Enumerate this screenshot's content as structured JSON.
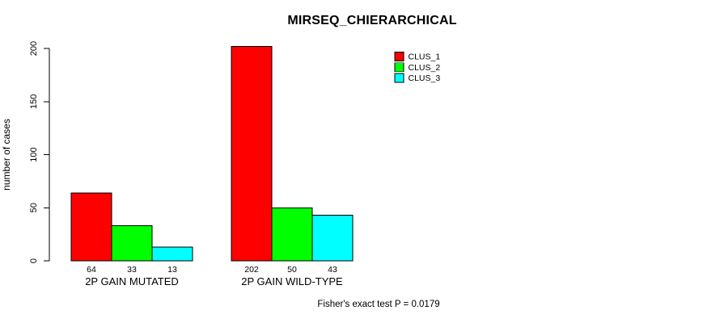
{
  "title": "MIRSEQ_CHIERARCHICAL",
  "footer": "Fisher's exact test P = 0.0179",
  "chart_data": {
    "type": "bar",
    "title": "MIRSEQ_CHIERARCHICAL",
    "xlabel": "",
    "ylabel": "number of cases",
    "categories": [
      "2P GAIN MUTATED",
      "2P GAIN WILD-TYPE"
    ],
    "series": [
      {
        "name": "CLUS_1",
        "color": "#ff0000",
        "values": [
          64,
          202
        ]
      },
      {
        "name": "CLUS_2",
        "color": "#00ff00",
        "values": [
          33,
          50
        ]
      },
      {
        "name": "CLUS_3",
        "color": "#00ffff",
        "values": [
          13,
          43
        ]
      }
    ],
    "yticks": [
      0,
      50,
      100,
      150,
      200
    ],
    "ylim": [
      0,
      202
    ],
    "grid": false,
    "bar_value_labels": [
      [
        64,
        33,
        13
      ],
      [
        202,
        50,
        43
      ]
    ],
    "legend": {
      "position": "top-right",
      "entries": [
        {
          "label": "CLUS_1",
          "color": "#ff0000"
        },
        {
          "label": "CLUS_2",
          "color": "#00ff00"
        },
        {
          "label": "CLUS_3",
          "color": "#00ffff"
        }
      ]
    },
    "annotation": "Fisher's exact test P = 0.0179",
    "colors": {
      "background": "#ffffff",
      "axis": "#000000",
      "bar_border": "#000000",
      "text": "#000000"
    }
  }
}
